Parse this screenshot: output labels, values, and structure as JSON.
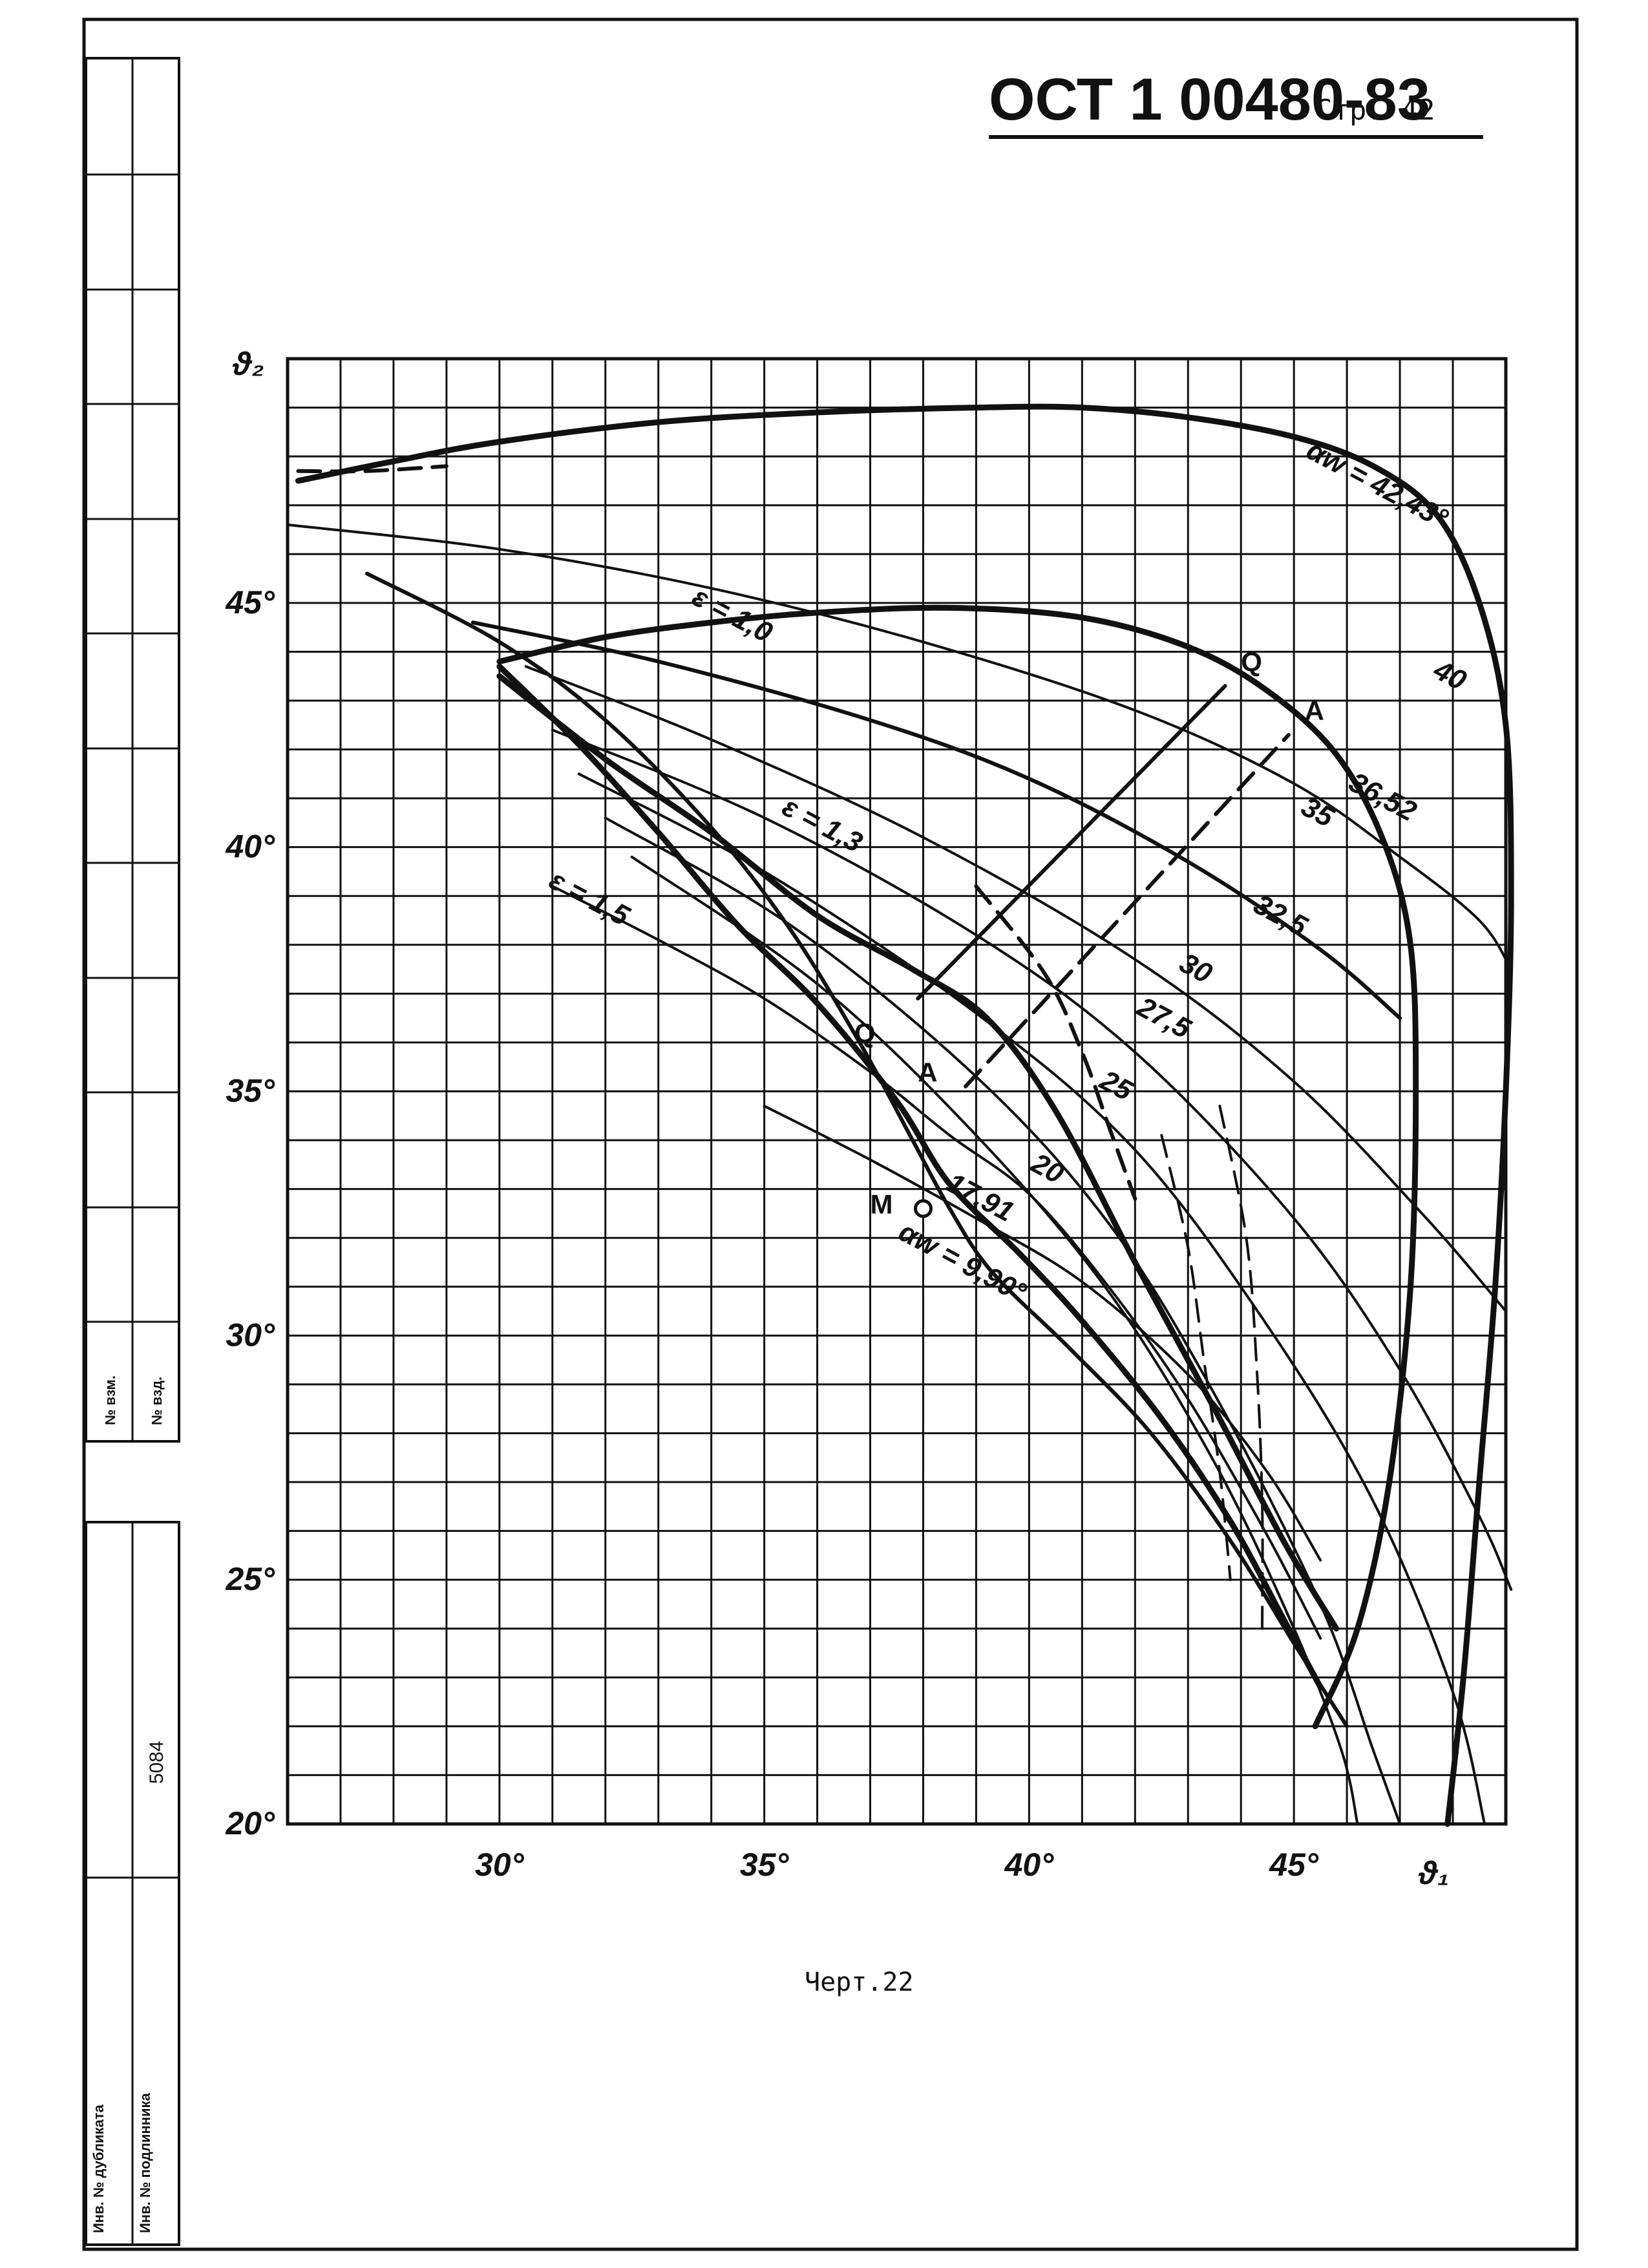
{
  "header": {
    "code": "ОСТ 1 00480-83",
    "page": "Стр. 42"
  },
  "caption": "Черт.22",
  "side_column": {
    "labels": [
      "№ взм.",
      "№ взд.",
      "5084",
      "Инв. № дубликата",
      "Инв. № подлинника"
    ]
  },
  "chart_data": {
    "type": "line",
    "title": "",
    "xlabel": "ϑ₁",
    "ylabel": "ϑ₂",
    "xlim": [
      26,
      49
    ],
    "ylim": [
      20,
      50
    ],
    "grid": true,
    "x_ticks": [
      30,
      35,
      40,
      45
    ],
    "x_tick_labels": [
      "30°",
      "35°",
      "40°",
      "45°"
    ],
    "y_ticks": [
      20,
      25,
      30,
      35,
      40,
      45
    ],
    "y_tick_labels": [
      "20°",
      "25°",
      "30°",
      "35°",
      "40°",
      "45°"
    ],
    "series": [
      {
        "label": "αw = 42,43°",
        "style": "solid",
        "weight": "heavy",
        "points": [
          [
            26.2,
            47.5
          ],
          [
            28,
            47.9
          ],
          [
            30,
            48.3
          ],
          [
            33,
            48.7
          ],
          [
            36,
            48.9
          ],
          [
            39,
            49.0
          ],
          [
            41,
            49.0
          ],
          [
            43,
            48.8
          ],
          [
            45,
            48.4
          ],
          [
            46.5,
            47.8
          ],
          [
            47.7,
            46.8
          ],
          [
            48.5,
            45.0
          ],
          [
            49.0,
            42.5
          ],
          [
            49.1,
            39
          ],
          [
            49.0,
            35
          ],
          [
            48.8,
            31
          ],
          [
            48.5,
            27
          ],
          [
            48.2,
            23
          ],
          [
            47.9,
            20
          ]
        ]
      },
      {
        "label": "ε = 1,0",
        "style": "solid",
        "weight": "heavy",
        "points": [
          [
            30,
            43.8
          ],
          [
            32,
            44.3
          ],
          [
            34,
            44.6
          ],
          [
            36,
            44.8
          ],
          [
            38.5,
            44.9
          ],
          [
            41,
            44.7
          ],
          [
            43,
            44.1
          ],
          [
            44.5,
            43.2
          ],
          [
            45.8,
            41.9
          ],
          [
            46.7,
            40.1
          ],
          [
            47.2,
            38
          ],
          [
            47.3,
            35
          ],
          [
            47.2,
            31
          ],
          [
            46.8,
            27
          ],
          [
            46.2,
            24
          ],
          [
            45.4,
            22
          ]
        ]
      },
      {
        "label": "40",
        "style": "solid",
        "weight": "light",
        "points": [
          [
            26,
            46.6
          ],
          [
            30,
            46.1
          ],
          [
            34,
            45.3
          ],
          [
            38,
            44.2
          ],
          [
            42,
            42.8
          ],
          [
            45,
            41.3
          ],
          [
            47,
            39.8
          ],
          [
            48.5,
            38.5
          ],
          [
            49.1,
            37.5
          ]
        ]
      },
      {
        "label": "36,52",
        "style": "solid",
        "weight": "medium",
        "points": [
          [
            29.5,
            44.6
          ],
          [
            33,
            43.8
          ],
          [
            37,
            42.6
          ],
          [
            40,
            41.4
          ],
          [
            43,
            39.7
          ],
          [
            45.5,
            37.9
          ],
          [
            47,
            36.5
          ]
        ]
      },
      {
        "label": "35",
        "style": "solid",
        "weight": "light",
        "points": [
          [
            30.5,
            43.7
          ],
          [
            34,
            42.2
          ],
          [
            38,
            40.2
          ],
          [
            42,
            37.7
          ],
          [
            45,
            35.2
          ],
          [
            47.5,
            32.4
          ],
          [
            49,
            30.5
          ]
        ]
      },
      {
        "label": "32,5",
        "style": "solid",
        "weight": "light",
        "points": [
          [
            31,
            42.4
          ],
          [
            35,
            40.6
          ],
          [
            39,
            38.2
          ],
          [
            42,
            35.8
          ],
          [
            45,
            32.4
          ],
          [
            47,
            29.3
          ],
          [
            48.5,
            26.3
          ],
          [
            49.1,
            24.8
          ]
        ]
      },
      {
        "label": "30",
        "style": "solid",
        "weight": "light",
        "points": [
          [
            31.5,
            41.5
          ],
          [
            35,
            39.5
          ],
          [
            39,
            36.6
          ],
          [
            42,
            33.8
          ],
          [
            44.5,
            30.2
          ],
          [
            46.5,
            26.6
          ],
          [
            48,
            22.7
          ],
          [
            48.6,
            20
          ]
        ]
      },
      {
        "label": "27,5",
        "style": "solid",
        "weight": "light",
        "points": [
          [
            32,
            40.6
          ],
          [
            35.5,
            38.4
          ],
          [
            39,
            35.3
          ],
          [
            41.5,
            32.3
          ],
          [
            43.5,
            28.8
          ],
          [
            45.5,
            24.5
          ],
          [
            46.5,
            21.5
          ],
          [
            47,
            20
          ]
        ]
      },
      {
        "label": "25",
        "style": "solid",
        "weight": "light",
        "points": [
          [
            32.5,
            39.8
          ],
          [
            36,
            37.2
          ],
          [
            39,
            34.1
          ],
          [
            41.5,
            30.9
          ],
          [
            43.5,
            27.4
          ],
          [
            45,
            24
          ],
          [
            45.9,
            21.5
          ],
          [
            46.2,
            20
          ]
        ]
      },
      {
        "label": "ε = 1,3",
        "style": "solid",
        "weight": "heavy",
        "points": [
          [
            30,
            43.5
          ],
          [
            32,
            41.8
          ],
          [
            34,
            40.3
          ],
          [
            36,
            38.6
          ],
          [
            37.8,
            37.5
          ],
          [
            39.2,
            36.5
          ],
          [
            40.5,
            34.6
          ],
          [
            42,
            31.5
          ],
          [
            43.5,
            28.5
          ],
          [
            44.8,
            25.8
          ],
          [
            45.8,
            24.0
          ]
        ]
      },
      {
        "label": "ε = 1,5",
        "style": "solid",
        "weight": "heavy",
        "points": [
          [
            30,
            43.7
          ],
          [
            31.5,
            42.1
          ],
          [
            33,
            40.3
          ],
          [
            34.5,
            38.4
          ],
          [
            36,
            36.8
          ],
          [
            37.5,
            34.8
          ],
          [
            38.5,
            33.1
          ],
          [
            39.8,
            31.7
          ],
          [
            41,
            30.3
          ],
          [
            42.5,
            28.3
          ],
          [
            43.8,
            26.2
          ],
          [
            44.8,
            24.2
          ],
          [
            45.5,
            22.8
          ]
        ]
      },
      {
        "label": "αw = 9,90°",
        "style": "solid",
        "weight": "medium",
        "points": [
          [
            27.5,
            45.6
          ],
          [
            30,
            44.2
          ],
          [
            32,
            42.6
          ],
          [
            34,
            40.4
          ],
          [
            35.5,
            38.3
          ],
          [
            36.8,
            36.0
          ],
          [
            37.8,
            34.0
          ],
          [
            38.5,
            32.6
          ],
          [
            39.3,
            31.3
          ],
          [
            40.8,
            29.7
          ],
          [
            42.3,
            28.0
          ],
          [
            43.8,
            25.8
          ],
          [
            45,
            23.7
          ],
          [
            46,
            22.0
          ]
        ]
      },
      {
        "label": "17,91",
        "style": "solid",
        "weight": "light",
        "points": [
          [
            31,
            39.2
          ],
          [
            33,
            38.1
          ],
          [
            35,
            36.9
          ],
          [
            37,
            35.4
          ],
          [
            38.5,
            34.1
          ],
          [
            40,
            32.9
          ],
          [
            41.5,
            31.0
          ],
          [
            43,
            28.7
          ],
          [
            44.5,
            25.9
          ],
          [
            45.5,
            23.8
          ]
        ]
      },
      {
        "label": "20",
        "style": "solid",
        "weight": "light",
        "points": [
          [
            35,
            34.7
          ],
          [
            37,
            33.6
          ],
          [
            39,
            32.4
          ],
          [
            41,
            31.1
          ],
          [
            43,
            29.2
          ],
          [
            44.5,
            27.2
          ],
          [
            45.5,
            25.4
          ]
        ]
      },
      {
        "label": "",
        "style": "dashed",
        "weight": "medium",
        "points": [
          [
            26.2,
            47.7
          ],
          [
            27.5,
            47.7
          ],
          [
            29,
            47.8
          ]
        ]
      },
      {
        "label": "",
        "style": "dashed",
        "weight": "medium",
        "points": [
          [
            39,
            39.2
          ],
          [
            40.3,
            37.4
          ],
          [
            41,
            35.8
          ],
          [
            41.5,
            34.3
          ],
          [
            42,
            32.8
          ]
        ]
      },
      {
        "label": "",
        "style": "dashed",
        "weight": "light",
        "points": [
          [
            42.5,
            34.1
          ],
          [
            43,
            31.8
          ],
          [
            43.3,
            29.5
          ],
          [
            43.6,
            27.2
          ],
          [
            43.8,
            25
          ]
        ]
      },
      {
        "label": "",
        "style": "dashed",
        "weight": "light",
        "points": [
          [
            43.6,
            34.7
          ],
          [
            44.1,
            32
          ],
          [
            44.3,
            29.3
          ],
          [
            44.4,
            26.6
          ],
          [
            44.4,
            24
          ]
        ]
      },
      {
        "label": "Q–Q",
        "style": "solid",
        "weight": "medium",
        "points": [
          [
            37.9,
            36.9
          ],
          [
            43.7,
            43.3
          ]
        ]
      },
      {
        "label": "A–A",
        "style": "dashed",
        "weight": "medium",
        "points": [
          [
            38.8,
            35.1
          ],
          [
            44.9,
            42.3
          ]
        ]
      }
    ],
    "annotations": [
      {
        "text": "αw = 42,43°",
        "x": 45.2,
        "y": 48.0
      },
      {
        "text": "ε = 1,0",
        "x": 33.6,
        "y": 45.0
      },
      {
        "text": "ε = 1,3",
        "x": 35.3,
        "y": 40.7
      },
      {
        "text": "ε = 1,5",
        "x": 30.9,
        "y": 39.2
      },
      {
        "text": "40",
        "x": 47.6,
        "y": 43.5
      },
      {
        "text": "36,52",
        "x": 46.0,
        "y": 41.2
      },
      {
        "text": "35",
        "x": 45.1,
        "y": 40.7
      },
      {
        "text": "32,5",
        "x": 44.2,
        "y": 38.7
      },
      {
        "text": "30",
        "x": 42.8,
        "y": 37.5
      },
      {
        "text": "27,5",
        "x": 42.0,
        "y": 36.6
      },
      {
        "text": "25",
        "x": 41.3,
        "y": 35.1
      },
      {
        "text": "20",
        "x": 40.0,
        "y": 33.4
      },
      {
        "text": "17,91",
        "x": 38.4,
        "y": 33.0
      },
      {
        "text": "αw = 9,90°",
        "x": 37.5,
        "y": 32.0
      },
      {
        "text": "Q",
        "x": 44.0,
        "y": 43.6
      },
      {
        "text": "A",
        "x": 45.2,
        "y": 42.6
      },
      {
        "text": "Q",
        "x": 36.7,
        "y": 36.0
      },
      {
        "text": "A",
        "x": 37.9,
        "y": 35.2
      },
      {
        "text": "M",
        "x": 37.0,
        "y": 32.5
      }
    ],
    "marker": {
      "label": "M",
      "x": 38.0,
      "y": 32.6
    }
  }
}
